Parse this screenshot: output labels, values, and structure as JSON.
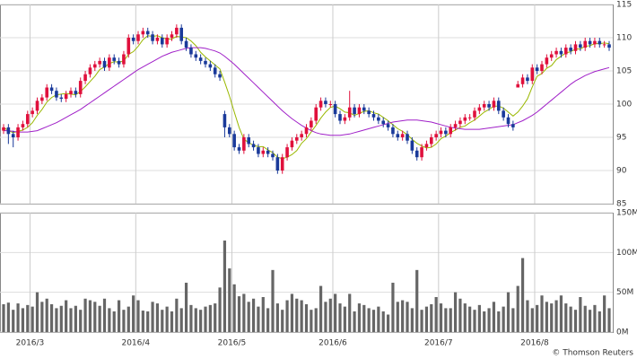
{
  "chart_data": {
    "type": "candlestick",
    "categories": [
      null,
      null,
      null,
      null,
      null,
      null,
      "2016/3",
      null,
      null,
      null,
      null,
      null,
      null,
      null,
      null,
      null,
      null,
      null,
      null,
      null,
      null,
      null,
      null,
      null,
      null,
      null,
      null,
      null,
      "2016/4",
      null,
      null,
      null,
      null,
      null,
      null,
      null,
      null,
      null,
      null,
      null,
      null,
      null,
      null,
      null,
      null,
      null,
      null,
      null,
      "2016/5",
      null,
      null,
      null,
      null,
      null,
      null,
      null,
      null,
      null,
      null,
      null,
      null,
      null,
      null,
      null,
      null,
      null,
      null,
      null,
      null,
      "2016/6",
      null,
      null,
      null,
      null,
      null,
      null,
      null,
      null,
      null,
      null,
      null,
      null,
      null,
      null,
      null,
      null,
      null,
      null,
      null,
      null,
      null,
      "2016/7",
      null,
      null,
      null,
      null,
      null,
      null,
      null,
      null,
      null,
      null,
      null,
      null,
      null,
      null,
      null,
      null,
      null,
      null,
      null,
      "2016/8",
      null,
      null,
      null,
      null,
      null,
      null,
      null,
      null,
      null,
      null,
      null,
      null,
      null,
      null,
      null
    ],
    "open": [
      96,
      96.5,
      95.5,
      95,
      96.5,
      97,
      98.5,
      99,
      100.5,
      101,
      102.5,
      102,
      101,
      100.8,
      101.5,
      102,
      101.5,
      103.5,
      104.5,
      105.5,
      106,
      106.5,
      105.5,
      107,
      106.5,
      106,
      107.5,
      110,
      109.5,
      110.5,
      111,
      110.5,
      109.5,
      110,
      109,
      110,
      110.5,
      111.5,
      109.5,
      108.5,
      107.5,
      107,
      106.5,
      106,
      105.5,
      104.5,
      98.5,
      96.5,
      95.5,
      93.5,
      93,
      95,
      94,
      93.5,
      92.5,
      93,
      92.5,
      92,
      90,
      92,
      93.5,
      94.5,
      95,
      95.5,
      96.5,
      97.5,
      99.5,
      100.5,
      100,
      100,
      98.5,
      97.5,
      98,
      99.5,
      98.5,
      99.5,
      99,
      98.5,
      98,
      97.5,
      97,
      96.5,
      95.5,
      95,
      95.5,
      94.5,
      93,
      92,
      93.5,
      94,
      95,
      95.5,
      96,
      95.5,
      96.5,
      97,
      97.5,
      98,
      98,
      99,
      99.5,
      100,
      99.5,
      100.5,
      99,
      98,
      97,
      102.5,
      103,
      104,
      103.5,
      105.5,
      105,
      106,
      107,
      107.5,
      108,
      107.5,
      108.5,
      108,
      109,
      108.5,
      109.5,
      109,
      109.5,
      109,
      109
    ],
    "high": [
      97,
      97,
      96,
      97,
      97.5,
      99,
      99.5,
      101,
      101.5,
      103,
      103,
      102.5,
      101.5,
      102,
      102.5,
      102.5,
      104,
      105,
      106,
      106.5,
      107,
      107,
      107.5,
      107.5,
      107,
      108,
      110.5,
      110.5,
      111,
      111.5,
      111.5,
      111,
      110.5,
      110.5,
      110.5,
      111,
      112,
      112,
      110,
      109,
      108,
      107.5,
      107,
      106.5,
      106,
      105,
      99,
      97,
      96,
      94,
      95.5,
      95.5,
      94.5,
      94,
      93.5,
      93.5,
      93,
      92.5,
      92.5,
      94,
      95,
      95.5,
      96,
      97,
      98,
      100,
      101,
      101,
      100.5,
      100.5,
      99,
      98.5,
      102,
      100,
      100,
      100,
      99.5,
      99,
      98.5,
      98,
      97.5,
      97,
      96,
      96,
      96,
      95,
      93.5,
      94,
      94.5,
      95.5,
      96,
      96.5,
      96.5,
      97,
      97.5,
      98,
      98.5,
      98.5,
      99.5,
      100,
      100.5,
      100.5,
      101,
      101,
      99.5,
      98.5,
      97.5,
      103.5,
      104.5,
      104.5,
      106,
      106,
      106.5,
      107.5,
      108,
      108.5,
      108.5,
      109,
      109,
      109.5,
      109.5,
      110,
      110,
      110,
      110,
      109.5,
      109.5
    ],
    "low": [
      95.5,
      94,
      93.5,
      94.5,
      96,
      96.5,
      98,
      98.5,
      100,
      100.5,
      101.5,
      100.5,
      100.3,
      100.3,
      101,
      101,
      101,
      103,
      104,
      105,
      105.5,
      105,
      105,
      106,
      105.5,
      105.5,
      107,
      109,
      109,
      110,
      110,
      109,
      109,
      108.5,
      108.5,
      109.5,
      110,
      109,
      108,
      107,
      106.5,
      106,
      105.5,
      105,
      104,
      103.5,
      95,
      95,
      93,
      92.5,
      92.5,
      93.5,
      93,
      92,
      92,
      92,
      91.5,
      89.5,
      89.5,
      91.5,
      93,
      94,
      94.5,
      95,
      96,
      97,
      99,
      99.5,
      99.5,
      98,
      97,
      97,
      97.5,
      98,
      98,
      98.5,
      98,
      97.5,
      97,
      96.5,
      96,
      95,
      94.5,
      94.5,
      94,
      92.5,
      91.5,
      91.5,
      93,
      93.5,
      94.5,
      95,
      95,
      95,
      96,
      96.5,
      97,
      97.5,
      97.5,
      98.5,
      99,
      99,
      99,
      98.5,
      97.5,
      96.5,
      96,
      102.5,
      102.5,
      103,
      103,
      104.5,
      104.5,
      105.5,
      106.5,
      107,
      107,
      107,
      107.5,
      107.5,
      108,
      108,
      108.5,
      108.5,
      108.5,
      108.5,
      108
    ],
    "close": [
      96.5,
      95.5,
      95,
      96.5,
      97,
      98.5,
      99,
      100.5,
      101,
      102.5,
      102,
      101,
      100.8,
      101.5,
      102,
      101.5,
      103.5,
      104.5,
      105.5,
      106,
      106.5,
      105.5,
      107,
      106.5,
      106,
      107.5,
      110,
      109.5,
      110.5,
      111,
      110.5,
      109.5,
      110,
      109,
      110,
      110.5,
      111.5,
      109.5,
      108.5,
      107.5,
      107,
      106.5,
      106,
      105.5,
      104.5,
      104,
      96.5,
      95.5,
      93.5,
      93,
      95,
      94,
      93.5,
      92.5,
      93,
      92.5,
      92,
      90,
      92,
      93.5,
      94.5,
      95,
      95.5,
      96.5,
      97.5,
      99.5,
      100.5,
      100,
      100,
      98.5,
      97.5,
      98,
      99.5,
      98.5,
      99.5,
      99,
      98.5,
      98,
      97.5,
      97,
      96.5,
      95.5,
      95,
      95.5,
      94.5,
      93,
      92,
      93.5,
      94,
      95,
      95.5,
      96,
      95.5,
      96.5,
      97,
      97.5,
      98,
      98,
      99,
      99.5,
      100,
      99.5,
      100.5,
      99,
      98,
      97,
      96.5,
      103,
      104,
      103.5,
      105.5,
      105,
      106,
      107,
      107.5,
      108,
      107.5,
      108.5,
      108,
      109,
      108.5,
      109.5,
      109,
      109.5,
      109,
      109,
      108.5
    ],
    "up_color": "#e0103c",
    "down_color": "#1a3a9a",
    "ylim": [
      85,
      115
    ],
    "yticks": [
      85,
      90,
      95,
      100,
      105,
      110,
      115
    ],
    "grid": true,
    "overlays": [
      {
        "color": "#9ab800",
        "values": [
          96.5,
          96,
          95.7,
          95.9,
          96.1,
          96.5,
          97.2,
          98.3,
          99.2,
          100.3,
          101,
          101.4,
          101.5,
          101.6,
          101.5,
          101.4,
          101.9,
          102.6,
          103.4,
          104.2,
          105.2,
          105.6,
          106.1,
          106.4,
          106.3,
          106.5,
          107.5,
          107.9,
          108.7,
          109.7,
          110.3,
          110.2,
          110.3,
          110,
          109.8,
          109.8,
          110.2,
          110.1,
          110,
          109.5,
          108.8,
          107.8,
          107.1,
          106.5,
          105.9,
          105.3,
          103.3,
          101.2,
          98.8,
          96.5,
          94.7,
          94.2,
          93.8,
          93.6,
          93.6,
          93.1,
          92.7,
          92,
          91.8,
          92,
          92.4,
          93,
          94.1,
          94.8,
          95.8,
          96.8,
          97.9,
          98.8,
          99.5,
          99.7,
          99.3,
          98.8,
          98.7,
          98.3,
          98.6,
          98.9,
          99,
          98.7,
          98.5,
          98,
          97.5,
          96.9,
          96.3,
          95.9,
          95.4,
          94.7,
          94.1,
          93.7,
          93.4,
          93.5,
          94,
          94.8,
          95.2,
          95.7,
          96.1,
          96.5,
          96.7,
          97.2,
          97.6,
          98.2,
          98.8,
          99.2,
          99.7,
          99.7,
          99.4,
          98.8,
          98.2,
          98.8,
          99.7,
          100.8,
          102.6,
          104.2,
          104.6,
          105.4,
          105.8,
          106.7,
          107.2,
          107.7,
          107.9,
          108.3,
          108.3,
          108.7,
          108.8,
          109.1,
          109.1,
          109.2,
          109.1
        ]
      },
      {
        "color": "#a020c8",
        "values": [
          96,
          96,
          95.9,
          95.8,
          95.8,
          95.8,
          95.9,
          96,
          96.3,
          96.6,
          96.9,
          97.2,
          97.6,
          98,
          98.4,
          98.8,
          99.2,
          99.7,
          100.2,
          100.7,
          101.2,
          101.7,
          102.2,
          102.7,
          103.2,
          103.7,
          104.2,
          104.7,
          105.2,
          105.6,
          106,
          106.4,
          106.8,
          107.2,
          107.5,
          107.8,
          108,
          108.2,
          108.4,
          108.5,
          108.5,
          108.5,
          108.4,
          108.2,
          108,
          107.7,
          107.2,
          106.6,
          106,
          105.3,
          104.6,
          103.9,
          103.2,
          102.5,
          101.8,
          101.1,
          100.4,
          99.7,
          99,
          98.4,
          97.8,
          97.3,
          96.8,
          96.4,
          96,
          95.7,
          95.5,
          95.4,
          95.3,
          95.3,
          95.3,
          95.4,
          95.5,
          95.7,
          95.9,
          96.1,
          96.3,
          96.5,
          96.7,
          96.9,
          97.1,
          97.3,
          97.4,
          97.5,
          97.6,
          97.6,
          97.6,
          97.5,
          97.4,
          97.3,
          97.1,
          96.9,
          96.7,
          96.5,
          96.4,
          96.3,
          96.2,
          96.2,
          96.2,
          96.2,
          96.3,
          96.4,
          96.5,
          96.6,
          96.7,
          96.8,
          96.9,
          97.2,
          97.5,
          97.9,
          98.3,
          98.8,
          99.4,
          100,
          100.6,
          101.2,
          101.8,
          102.4,
          103,
          103.5,
          103.9,
          104.3,
          104.6,
          104.9,
          105.1,
          105.3,
          105.5
        ]
      }
    ],
    "volume": {
      "color": "#666666",
      "ylim": [
        0,
        150
      ],
      "yticks": [
        {
          "value": 0,
          "label": "0M"
        },
        {
          "value": 50,
          "label": "50M"
        },
        {
          "value": 100,
          "label": "100M"
        },
        {
          "value": 150,
          "label": "150M"
        }
      ],
      "values": [
        35,
        37,
        28,
        36,
        30,
        34,
        32,
        50,
        38,
        42,
        35,
        30,
        33,
        40,
        30,
        33,
        28,
        42,
        40,
        38,
        33,
        42,
        30,
        26,
        40,
        28,
        32,
        46,
        40,
        27,
        26,
        38,
        36,
        28,
        32,
        26,
        42,
        30,
        62,
        34,
        30,
        28,
        32,
        34,
        36,
        56,
        115,
        80,
        60,
        45,
        48,
        38,
        42,
        32,
        44,
        30,
        78,
        36,
        28,
        40,
        48,
        42,
        40,
        35,
        28,
        30,
        58,
        38,
        42,
        48,
        36,
        32,
        48,
        26,
        36,
        34,
        30,
        28,
        32,
        26,
        22,
        62,
        38,
        40,
        38,
        30,
        78,
        28,
        32,
        35,
        44,
        36,
        30,
        30,
        50,
        42,
        36,
        32,
        28,
        34,
        26,
        30,
        38,
        26,
        32,
        50,
        30,
        58,
        93,
        40,
        30,
        34,
        46,
        38,
        36,
        40,
        46,
        36,
        32,
        28,
        44,
        33,
        28,
        34,
        26,
        46,
        30
      ]
    }
  },
  "footer": "© Thomson Reuters"
}
